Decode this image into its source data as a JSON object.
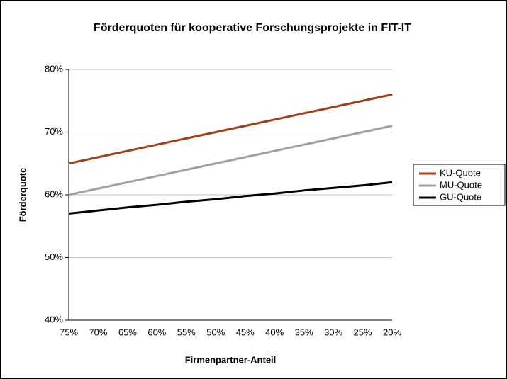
{
  "chart_data": {
    "type": "line",
    "title": "Förderquoten für kooperative Forschungsprojekte in FIT-IT",
    "x_label": "Firmenpartner-Anteil",
    "y_label": "Förderquote",
    "categories": [
      "75%",
      "70%",
      "65%",
      "60%",
      "55%",
      "50%",
      "45%",
      "40%",
      "35%",
      "30%",
      "25%",
      "20%"
    ],
    "series": [
      {
        "name": "KU-Quote",
        "color": "#a0401a",
        "values": [
          65,
          66,
          67,
          68,
          69,
          70,
          71,
          72,
          73,
          74,
          75,
          76
        ]
      },
      {
        "name": "MU-Quote",
        "color": "#a0a0a0",
        "values": [
          60,
          61,
          62,
          63,
          64,
          65,
          66,
          67,
          68,
          69,
          70,
          71
        ]
      },
      {
        "name": "GU-Quote",
        "color": "#000000",
        "values": [
          57,
          57.5,
          58,
          58.4,
          58.9,
          59.3,
          59.8,
          60.2,
          60.7,
          61.1,
          61.5,
          62
        ]
      }
    ],
    "ylim": [
      40,
      80
    ],
    "yticks": [
      {
        "value": 40,
        "label": "40%"
      },
      {
        "value": 50,
        "label": "50%"
      },
      {
        "value": 60,
        "label": "60%"
      },
      {
        "value": 70,
        "label": "70%"
      },
      {
        "value": 80,
        "label": "80%"
      }
    ],
    "grid": true,
    "legend": "right"
  }
}
